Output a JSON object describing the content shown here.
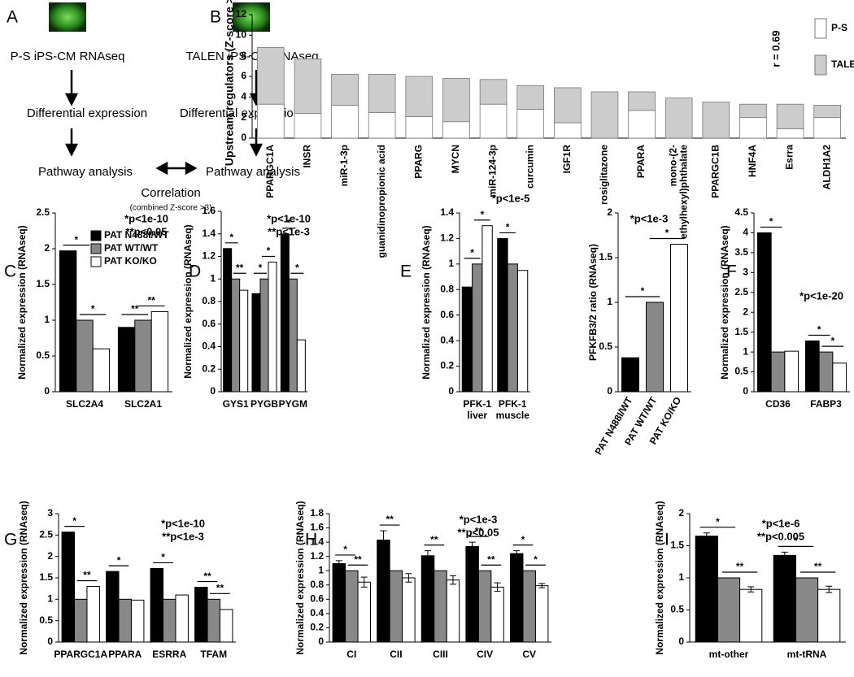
{
  "diagram": {
    "label": "A",
    "left": {
      "source": "P-S iPS-CM RNAseq",
      "step1": "Differential expression",
      "step2": "Pathway analysis"
    },
    "right": {
      "source": "TALEN iPS-CM RNAseq",
      "step1": "Differential expression",
      "step2": "Pathway analysis"
    },
    "link": "Correlation",
    "note": "(combined Z-score >3)"
  },
  "chart_data": [
    {
      "type": "stackedbar",
      "label": "B",
      "ylabel": "Upstream regulators (Z-score >3)",
      "annotations": [
        "r = 0.69"
      ],
      "categories": [
        "PPARGC1A",
        "INSR",
        "miR-1-3p",
        "guanidinopropionic acid",
        "PPARG",
        "MYCN",
        "miR-124-3p",
        "curcumin",
        "IGF1R",
        "rosiglitazone",
        "PPARA",
        [
          "mono-(2-",
          "ethylhexyl)phthalate"
        ],
        "PPARGC1B",
        "HNF4A",
        "Esrra",
        "ALDH1A2"
      ],
      "series": [
        {
          "name": "P-S",
          "color": "#ffffff",
          "values": [
            3.3,
            2.4,
            3.2,
            2.5,
            2.1,
            1.6,
            3.3,
            2.8,
            1.5,
            0,
            2.7,
            0,
            0,
            2.0,
            0.9,
            2.0
          ]
        },
        {
          "name": "TALEN",
          "color": "#cccccc",
          "values": [
            5.5,
            5.3,
            3.0,
            3.7,
            3.9,
            4.2,
            2.4,
            2.3,
            3.4,
            4.5,
            1.8,
            3.9,
            3.5,
            1.3,
            2.4,
            1.2
          ]
        }
      ],
      "ylim": [
        0,
        12
      ],
      "yticks": [
        0,
        2,
        4,
        6,
        8,
        10,
        12
      ]
    },
    {
      "type": "groupedbar",
      "label": "C",
      "ylabel": "Normalized expression (RNAseq)",
      "annotations": [
        "*p<1e-10",
        "**p<0.05"
      ],
      "categories": [
        "SLC2A4",
        "SLC2A1"
      ],
      "series": [
        {
          "name": "PAT N488I/WT",
          "color": "#000000",
          "values": [
            1.97,
            0.9
          ]
        },
        {
          "name": "PAT WT/WT",
          "color": "#888888",
          "values": [
            1.0,
            1.0
          ]
        },
        {
          "name": "PAT KO/KO",
          "color": "#ffffff",
          "values": [
            0.6,
            1.12
          ]
        }
      ],
      "significance": [
        [
          "*",
          "*"
        ],
        [
          "**",
          "**"
        ]
      ],
      "ylim": [
        0,
        2.5
      ],
      "yticks": [
        0,
        0.5,
        1,
        1.5,
        2,
        2.5
      ]
    },
    {
      "type": "groupedbar",
      "label": "D",
      "ylabel": "Normalized expression (RNAseq)",
      "annotations": [
        "*p<1e-10",
        "**p<1e-3"
      ],
      "categories": [
        "GYS1",
        "PYGB",
        "PYGM"
      ],
      "series": [
        {
          "color": "#000000",
          "values": [
            1.27,
            0.87,
            1.4
          ]
        },
        {
          "color": "#888888",
          "values": [
            1.0,
            1.0,
            1.0
          ]
        },
        {
          "color": "#ffffff",
          "values": [
            0.9,
            1.15,
            0.46
          ]
        }
      ],
      "significance": [
        [
          "*",
          "**"
        ],
        [
          "*",
          "*"
        ],
        [
          "*",
          "*"
        ]
      ],
      "ylim": [
        0,
        1.6
      ],
      "yticks": [
        0,
        0.2,
        0.4,
        0.6,
        0.8,
        1,
        1.2,
        1.4,
        1.6
      ]
    },
    {
      "type": "groupedbar",
      "label": "E",
      "ylabel": "Normalized expression (RNAseq)",
      "annotations": [
        "*p<1e-5"
      ],
      "categories": [
        [
          "PFK-1",
          "liver"
        ],
        [
          "PFK-1",
          "muscle"
        ]
      ],
      "series": [
        {
          "color": "#000000",
          "values": [
            0.82,
            1.2
          ]
        },
        {
          "color": "#888888",
          "values": [
            1.0,
            1.0
          ]
        },
        {
          "color": "#ffffff",
          "values": [
            1.3,
            0.95
          ]
        }
      ],
      "significance": [
        [
          "*",
          "*"
        ],
        [
          "*",
          null
        ]
      ],
      "ylim": [
        0,
        1.4
      ],
      "yticks": [
        0,
        0.2,
        0.4,
        0.6,
        0.8,
        1,
        1.2,
        1.4
      ]
    },
    {
      "type": "bar",
      "ylabel": "PFKFB3/2 ratio (RNAseq)",
      "annotations": [
        "*p<1e-3"
      ],
      "categories": [
        "PAT N488I/WT",
        "PAT WT/WT",
        "PAT KO/KO"
      ],
      "values": [
        0.38,
        1.0,
        1.65
      ],
      "colors": [
        "#000000",
        "#888888",
        "#ffffff"
      ],
      "significance": [
        "*",
        "*"
      ],
      "ylim": [
        0,
        2
      ],
      "yticks": [
        0,
        0.5,
        1,
        1.5,
        2
      ]
    },
    {
      "type": "groupedbar",
      "label": "F",
      "ylabel": "Normalized expression (RNAseq)",
      "annotations": [
        "*p<1e-20"
      ],
      "categories": [
        "CD36",
        "FABP3"
      ],
      "series": [
        {
          "color": "#000000",
          "values": [
            4.0,
            1.28
          ]
        },
        {
          "color": "#888888",
          "values": [
            1.0,
            1.0
          ]
        },
        {
          "color": "#ffffff",
          "values": [
            1.02,
            0.72
          ]
        }
      ],
      "significance": [
        [
          "*",
          null
        ],
        [
          "*",
          "*"
        ]
      ],
      "ylim": [
        0,
        4.5
      ],
      "yticks": [
        0,
        0.5,
        1,
        1.5,
        2,
        2.5,
        3,
        3.5,
        4,
        4.5
      ]
    },
    {
      "type": "groupedbar",
      "label": "G",
      "ylabel": "Normalized expression (RNAseq)",
      "annotations": [
        "*p<1e-10",
        "**p<1e-3"
      ],
      "categories": [
        "PPARGC1A",
        "PPARA",
        "ESRRA",
        "TFAM"
      ],
      "series": [
        {
          "color": "#000000",
          "values": [
            2.57,
            1.65,
            1.72,
            1.28
          ]
        },
        {
          "color": "#888888",
          "values": [
            1.0,
            1.0,
            1.0,
            1.0
          ]
        },
        {
          "color": "#ffffff",
          "values": [
            1.3,
            0.98,
            1.1,
            0.76
          ]
        }
      ],
      "significance": [
        [
          "*",
          "**"
        ],
        [
          "*",
          null
        ],
        [
          "*",
          null
        ],
        [
          "**",
          "**"
        ]
      ],
      "ylim": [
        0,
        3
      ],
      "yticks": [
        0,
        0.5,
        1,
        1.5,
        2,
        2.5,
        3
      ]
    },
    {
      "type": "groupedbar",
      "label": "H",
      "ylabel": "Normalized expression (RNAseq)",
      "annotations": [
        "*p<1e-3",
        "**p<0.05"
      ],
      "categories": [
        "CI",
        "CII",
        "CIII",
        "CIV",
        "CV"
      ],
      "series": [
        {
          "color": "#000000",
          "values": [
            1.1,
            1.43,
            1.21,
            1.34,
            1.24
          ],
          "errors": [
            0.04,
            0.13,
            0.07,
            0.06,
            0.04
          ]
        },
        {
          "color": "#888888",
          "values": [
            1.0,
            1.0,
            1.0,
            1.0,
            1.0
          ]
        },
        {
          "color": "#ffffff",
          "values": [
            0.84,
            0.9,
            0.87,
            0.77,
            0.79
          ],
          "errors": [
            0.07,
            0.06,
            0.06,
            0.06,
            0.03
          ]
        }
      ],
      "significance": [
        [
          "*",
          "**"
        ],
        [
          "**",
          null
        ],
        [
          "**",
          null
        ],
        [
          "**",
          "**"
        ],
        [
          "*",
          "*"
        ]
      ],
      "ylim": [
        0,
        1.8
      ],
      "yticks": [
        0,
        0.2,
        0.4,
        0.6,
        0.8,
        1,
        1.2,
        1.4,
        1.6,
        1.8
      ]
    },
    {
      "type": "groupedbar",
      "label": "I",
      "ylabel": "Normalized expression (RNAseq)",
      "annotations": [
        "*p<1e-6",
        "**p<0.005"
      ],
      "categories": [
        "mt-other",
        "mt-tRNA"
      ],
      "series": [
        {
          "color": "#000000",
          "values": [
            1.65,
            1.35
          ],
          "errors": [
            0.05,
            0.05
          ]
        },
        {
          "color": "#888888",
          "values": [
            1.0,
            1.0
          ]
        },
        {
          "color": "#ffffff",
          "values": [
            0.82,
            0.82
          ],
          "errors": [
            0.04,
            0.05
          ]
        }
      ],
      "significance": [
        [
          "*",
          "**"
        ],
        [
          "*",
          "**"
        ]
      ],
      "ylim": [
        0,
        2
      ],
      "yticks": [
        0,
        0.5,
        1,
        1.5,
        2
      ]
    }
  ]
}
